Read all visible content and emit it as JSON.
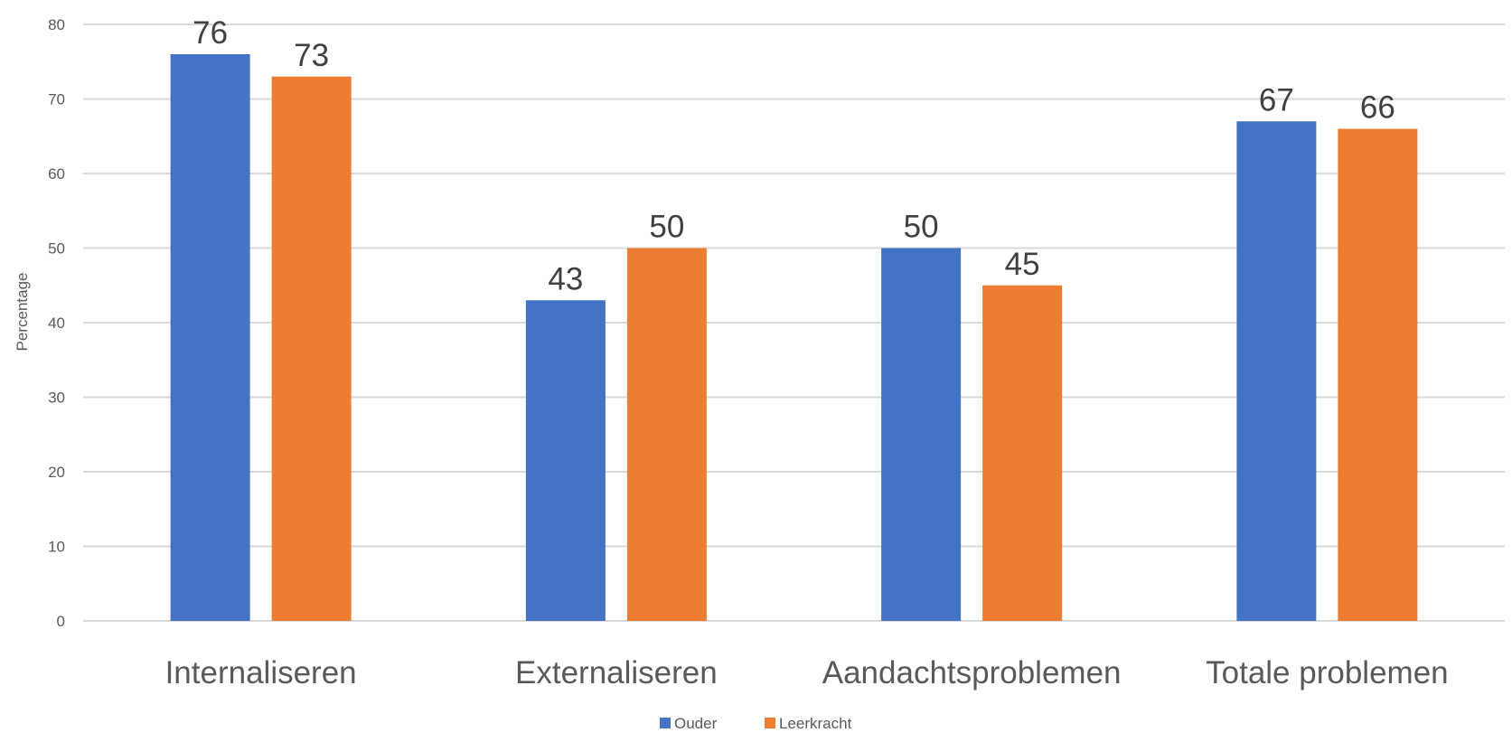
{
  "chart_data": {
    "type": "bar",
    "categories": [
      "Internaliseren",
      "Externaliseren",
      "Aandachtsproblemen",
      "Totale problemen"
    ],
    "series": [
      {
        "name": "Ouder",
        "values": [
          76,
          43,
          50,
          67
        ],
        "color": "#4472C4"
      },
      {
        "name": "Leerkracht",
        "values": [
          73,
          50,
          45,
          66
        ],
        "color": "#ED7D31"
      }
    ],
    "ylabel": "Percentage",
    "xlabel": "",
    "ylim": [
      0,
      80
    ],
    "yticks": [
      0,
      10,
      20,
      30,
      40,
      50,
      60,
      70,
      80
    ],
    "grid": true,
    "gridColor": "#d9d9d9",
    "data_labels": true,
    "legend_position": "bottom"
  }
}
